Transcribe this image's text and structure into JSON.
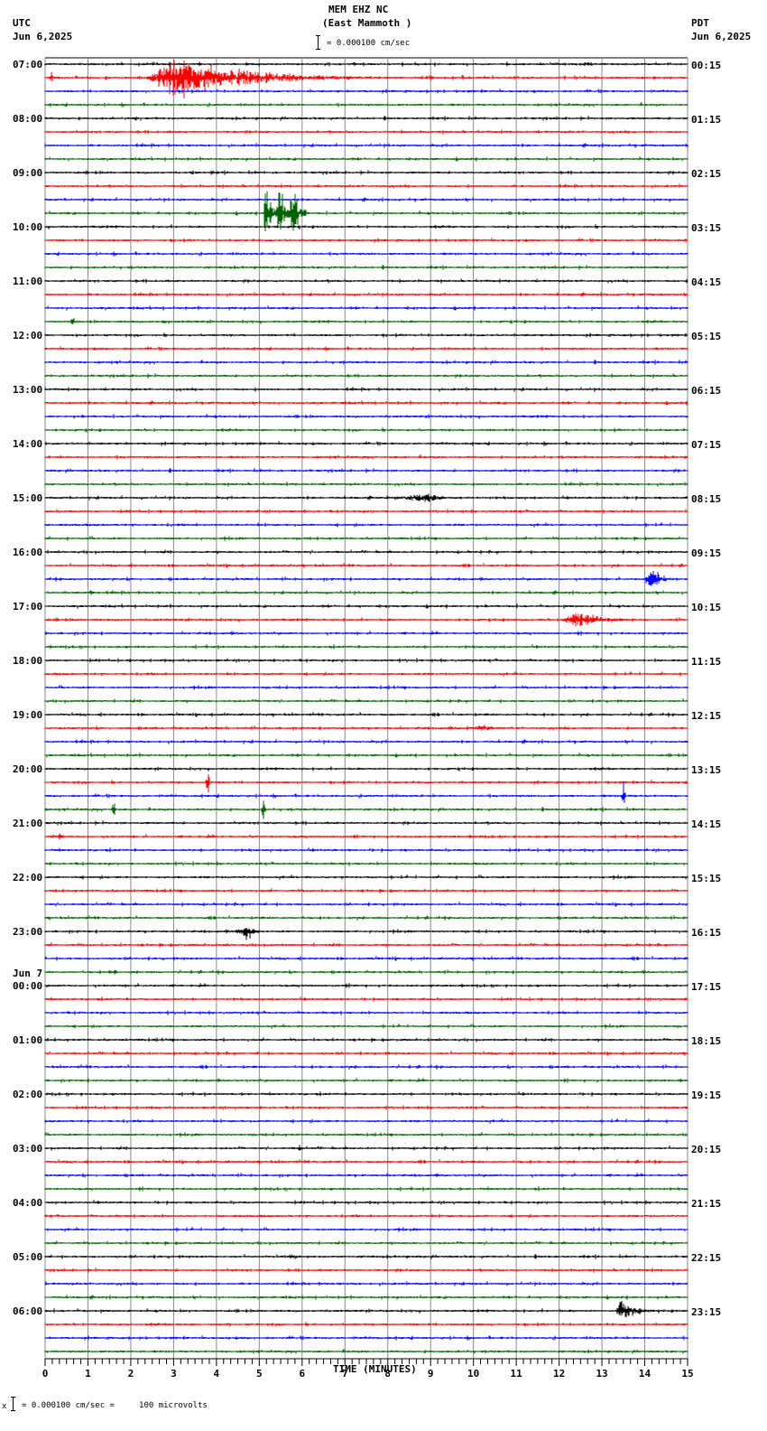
{
  "header": {
    "station": "MEM EHZ NC",
    "location": "(East Mammoth )",
    "scale_text": "= 0.000100 cm/sec",
    "left_tz": "UTC",
    "left_date": "Jun 6,2025",
    "right_tz": "PDT",
    "right_date": "Jun 6,2025"
  },
  "footer": {
    "scale_text": "= 0.000100 cm/sec =     100 microvolts",
    "prefix": "x"
  },
  "chart_data": {
    "type": "line",
    "subtype": "helicorder",
    "title": "MEM EHZ NC (East Mammoth )",
    "xlabel": "TIME (MINUTES)",
    "ylabel": "",
    "xlim": [
      0,
      15
    ],
    "x_ticks": [
      "0",
      "1",
      "2",
      "3",
      "4",
      "5",
      "6",
      "7",
      "8",
      "9",
      "10",
      "11",
      "12",
      "13",
      "14",
      "15"
    ],
    "rows": 96,
    "minutes_per_row": 15,
    "trace_colors": [
      "#000000",
      "#ff0000",
      "#0000ff",
      "#006400"
    ],
    "grid": true,
    "utc_labels": [
      {
        "row": 0,
        "text": "07:00"
      },
      {
        "row": 4,
        "text": "08:00"
      },
      {
        "row": 8,
        "text": "09:00"
      },
      {
        "row": 12,
        "text": "10:00"
      },
      {
        "row": 16,
        "text": "11:00"
      },
      {
        "row": 20,
        "text": "12:00"
      },
      {
        "row": 24,
        "text": "13:00"
      },
      {
        "row": 28,
        "text": "14:00"
      },
      {
        "row": 32,
        "text": "15:00"
      },
      {
        "row": 36,
        "text": "16:00"
      },
      {
        "row": 40,
        "text": "17:00"
      },
      {
        "row": 44,
        "text": "18:00"
      },
      {
        "row": 48,
        "text": "19:00"
      },
      {
        "row": 52,
        "text": "20:00"
      },
      {
        "row": 56,
        "text": "21:00"
      },
      {
        "row": 60,
        "text": "22:00"
      },
      {
        "row": 64,
        "text": "23:00"
      },
      {
        "row": 68,
        "text": "00:00",
        "date": "Jun 7"
      },
      {
        "row": 72,
        "text": "01:00"
      },
      {
        "row": 76,
        "text": "02:00"
      },
      {
        "row": 80,
        "text": "03:00"
      },
      {
        "row": 84,
        "text": "04:00"
      },
      {
        "row": 88,
        "text": "05:00"
      },
      {
        "row": 92,
        "text": "06:00"
      }
    ],
    "pdt_labels": [
      {
        "row": 0,
        "text": "00:15"
      },
      {
        "row": 4,
        "text": "01:15"
      },
      {
        "row": 8,
        "text": "02:15"
      },
      {
        "row": 12,
        "text": "03:15"
      },
      {
        "row": 16,
        "text": "04:15"
      },
      {
        "row": 20,
        "text": "05:15"
      },
      {
        "row": 24,
        "text": "06:15"
      },
      {
        "row": 28,
        "text": "07:15"
      },
      {
        "row": 32,
        "text": "08:15"
      },
      {
        "row": 36,
        "text": "09:15"
      },
      {
        "row": 40,
        "text": "10:15"
      },
      {
        "row": 44,
        "text": "11:15"
      },
      {
        "row": 48,
        "text": "12:15"
      },
      {
        "row": 52,
        "text": "13:15"
      },
      {
        "row": 56,
        "text": "14:15"
      },
      {
        "row": 60,
        "text": "15:15"
      },
      {
        "row": 64,
        "text": "16:15"
      },
      {
        "row": 68,
        "text": "17:15"
      },
      {
        "row": 72,
        "text": "18:15"
      },
      {
        "row": 76,
        "text": "19:15"
      },
      {
        "row": 80,
        "text": "20:15"
      },
      {
        "row": 84,
        "text": "21:15"
      },
      {
        "row": 88,
        "text": "22:15"
      },
      {
        "row": 92,
        "text": "23:15"
      }
    ],
    "events": [
      {
        "row": 1,
        "start_min": 2.3,
        "end_min": 7.8,
        "amp": 26,
        "peak_min": 3.1,
        "kind": "quake"
      },
      {
        "row": 1,
        "start_min": 0.1,
        "end_min": 0.25,
        "amp": 8,
        "peak_min": 0.15,
        "kind": "spike"
      },
      {
        "row": 0,
        "start_min": 12.0,
        "end_min": 13.6,
        "amp": 3,
        "peak_min": 12.6,
        "kind": "quake"
      },
      {
        "row": 4,
        "start_min": 1.8,
        "end_min": 2.4,
        "amp": 2.5,
        "peak_min": 2.0,
        "kind": "quake"
      },
      {
        "row": 8,
        "start_min": 3.2,
        "end_min": 3.9,
        "amp": 3,
        "peak_min": 3.5,
        "kind": "quake"
      },
      {
        "row": 11,
        "start_min": 5.1,
        "end_min": 6.1,
        "amp": 26,
        "peak_min": 5.2,
        "kind": "cal"
      },
      {
        "row": 19,
        "start_min": 0.55,
        "end_min": 0.9,
        "amp": 7,
        "peak_min": 0.65,
        "kind": "quake"
      },
      {
        "row": 19,
        "start_min": 2.7,
        "end_min": 2.95,
        "amp": 5,
        "peak_min": 2.75,
        "kind": "quake"
      },
      {
        "row": 32,
        "start_min": 7.9,
        "end_min": 9.8,
        "amp": 7,
        "peak_min": 9.0,
        "kind": "quake"
      },
      {
        "row": 38,
        "start_min": 13.9,
        "end_min": 14.8,
        "amp": 14,
        "peak_min": 14.2,
        "kind": "quake"
      },
      {
        "row": 39,
        "start_min": 1.0,
        "end_min": 1.3,
        "amp": 6,
        "peak_min": 1.05,
        "kind": "quake"
      },
      {
        "row": 41,
        "start_min": 12.0,
        "end_min": 14.2,
        "amp": 12,
        "peak_min": 12.4,
        "kind": "quake"
      },
      {
        "row": 49,
        "start_min": 9.8,
        "end_min": 11.0,
        "amp": 5,
        "peak_min": 10.2,
        "kind": "quake"
      },
      {
        "row": 53,
        "start_min": 3.75,
        "end_min": 3.85,
        "amp": 22,
        "peak_min": 3.8,
        "kind": "spike"
      },
      {
        "row": 54,
        "start_min": 13.45,
        "end_min": 13.55,
        "amp": 22,
        "peak_min": 13.5,
        "kind": "spike"
      },
      {
        "row": 55,
        "start_min": 1.55,
        "end_min": 1.65,
        "amp": 14,
        "peak_min": 1.6,
        "kind": "spike"
      },
      {
        "row": 55,
        "start_min": 5.05,
        "end_min": 5.15,
        "amp": 14,
        "peak_min": 5.1,
        "kind": "spike"
      },
      {
        "row": 57,
        "start_min": 0.2,
        "end_min": 0.6,
        "amp": 5,
        "peak_min": 0.35,
        "kind": "quake"
      },
      {
        "row": 64,
        "start_min": 4.4,
        "end_min": 5.1,
        "amp": 13,
        "peak_min": 4.75,
        "kind": "quake"
      },
      {
        "row": 67,
        "start_min": 1.4,
        "end_min": 2.0,
        "amp": 5,
        "peak_min": 1.6,
        "kind": "quake"
      },
      {
        "row": 80,
        "start_min": 5.9,
        "end_min": 6.05,
        "amp": 8,
        "peak_min": 5.95,
        "kind": "spike"
      },
      {
        "row": 88,
        "start_min": 5.6,
        "end_min": 6.2,
        "amp": 4,
        "peak_min": 5.8,
        "kind": "quake"
      },
      {
        "row": 92,
        "start_min": 13.3,
        "end_min": 14.4,
        "amp": 16,
        "peak_min": 13.45,
        "kind": "quake"
      },
      {
        "row": 93,
        "start_min": 4.1,
        "end_min": 4.6,
        "amp": 4,
        "peak_min": 4.3,
        "kind": "quake"
      }
    ]
  }
}
